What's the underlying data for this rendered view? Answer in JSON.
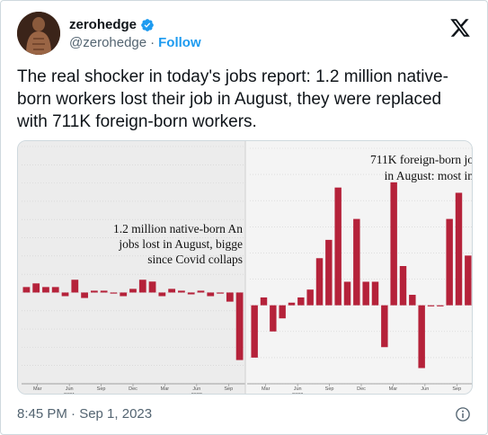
{
  "author": {
    "display_name": "zerohedge",
    "handle": "@zerohedge",
    "separator": "·",
    "follow_label": "Follow"
  },
  "tweet": {
    "text": "The real shocker in today's jobs report: 1.2 million native-born workers lost their job in August, they were replaced with 711K foreign-born workers.",
    "timestamp": "8:45 PM · Sep 1, 2023"
  },
  "colors": {
    "accent": "#1d9bf0",
    "bar": "#b5223a",
    "text": "#0f1419",
    "muted": "#536471"
  },
  "icons": {
    "verified": "verified-badge-icon",
    "x_logo": "x-logo-icon",
    "info": "info-icon"
  },
  "chart_data": [
    {
      "type": "bar",
      "panel": "native-born",
      "annotation_lines": [
        "1.2 million native-born An",
        "jobs lost in August, bigge",
        "since Covid collaps"
      ],
      "x_tick_labels": [
        "Mar",
        "Jun",
        "Sep",
        "Dec",
        "Mar",
        "Jun",
        "Sep"
      ],
      "x_year_labels": [
        {
          "after": "Jun",
          "year": "2021"
        },
        {
          "after": "Jun",
          "year": "2022"
        }
      ],
      "values": [
        0.3,
        0.5,
        0.3,
        0.3,
        -0.2,
        0.7,
        -0.3,
        0.1,
        0.1,
        0.0,
        -0.2,
        0.2,
        0.7,
        0.6,
        -0.2,
        0.2,
        0.1,
        -0.1,
        0.1,
        -0.2,
        0.0,
        -0.5,
        -3.7
      ],
      "ylim": [
        -5,
        8
      ]
    },
    {
      "type": "bar",
      "panel": "foreign-born",
      "annotation_lines": [
        "711K foreign-born jo",
        "in August: most in"
      ],
      "x_tick_labels": [
        "Mar",
        "Jun",
        "Sep",
        "Dec",
        "Mar",
        "Jun",
        "Sep"
      ],
      "x_year_labels": [
        {
          "after": "Jun",
          "year": "2022"
        }
      ],
      "values": [
        -2.0,
        0.3,
        -1.0,
        -0.5,
        0.1,
        0.3,
        0.6,
        1.8,
        2.5,
        4.5,
        0.9,
        3.3,
        0.9,
        0.9,
        -1.6,
        4.7,
        1.5,
        0.4,
        -2.4,
        0.0,
        0.0,
        3.3,
        4.3,
        1.9
      ],
      "ylim": [
        -3,
        6
      ]
    }
  ]
}
